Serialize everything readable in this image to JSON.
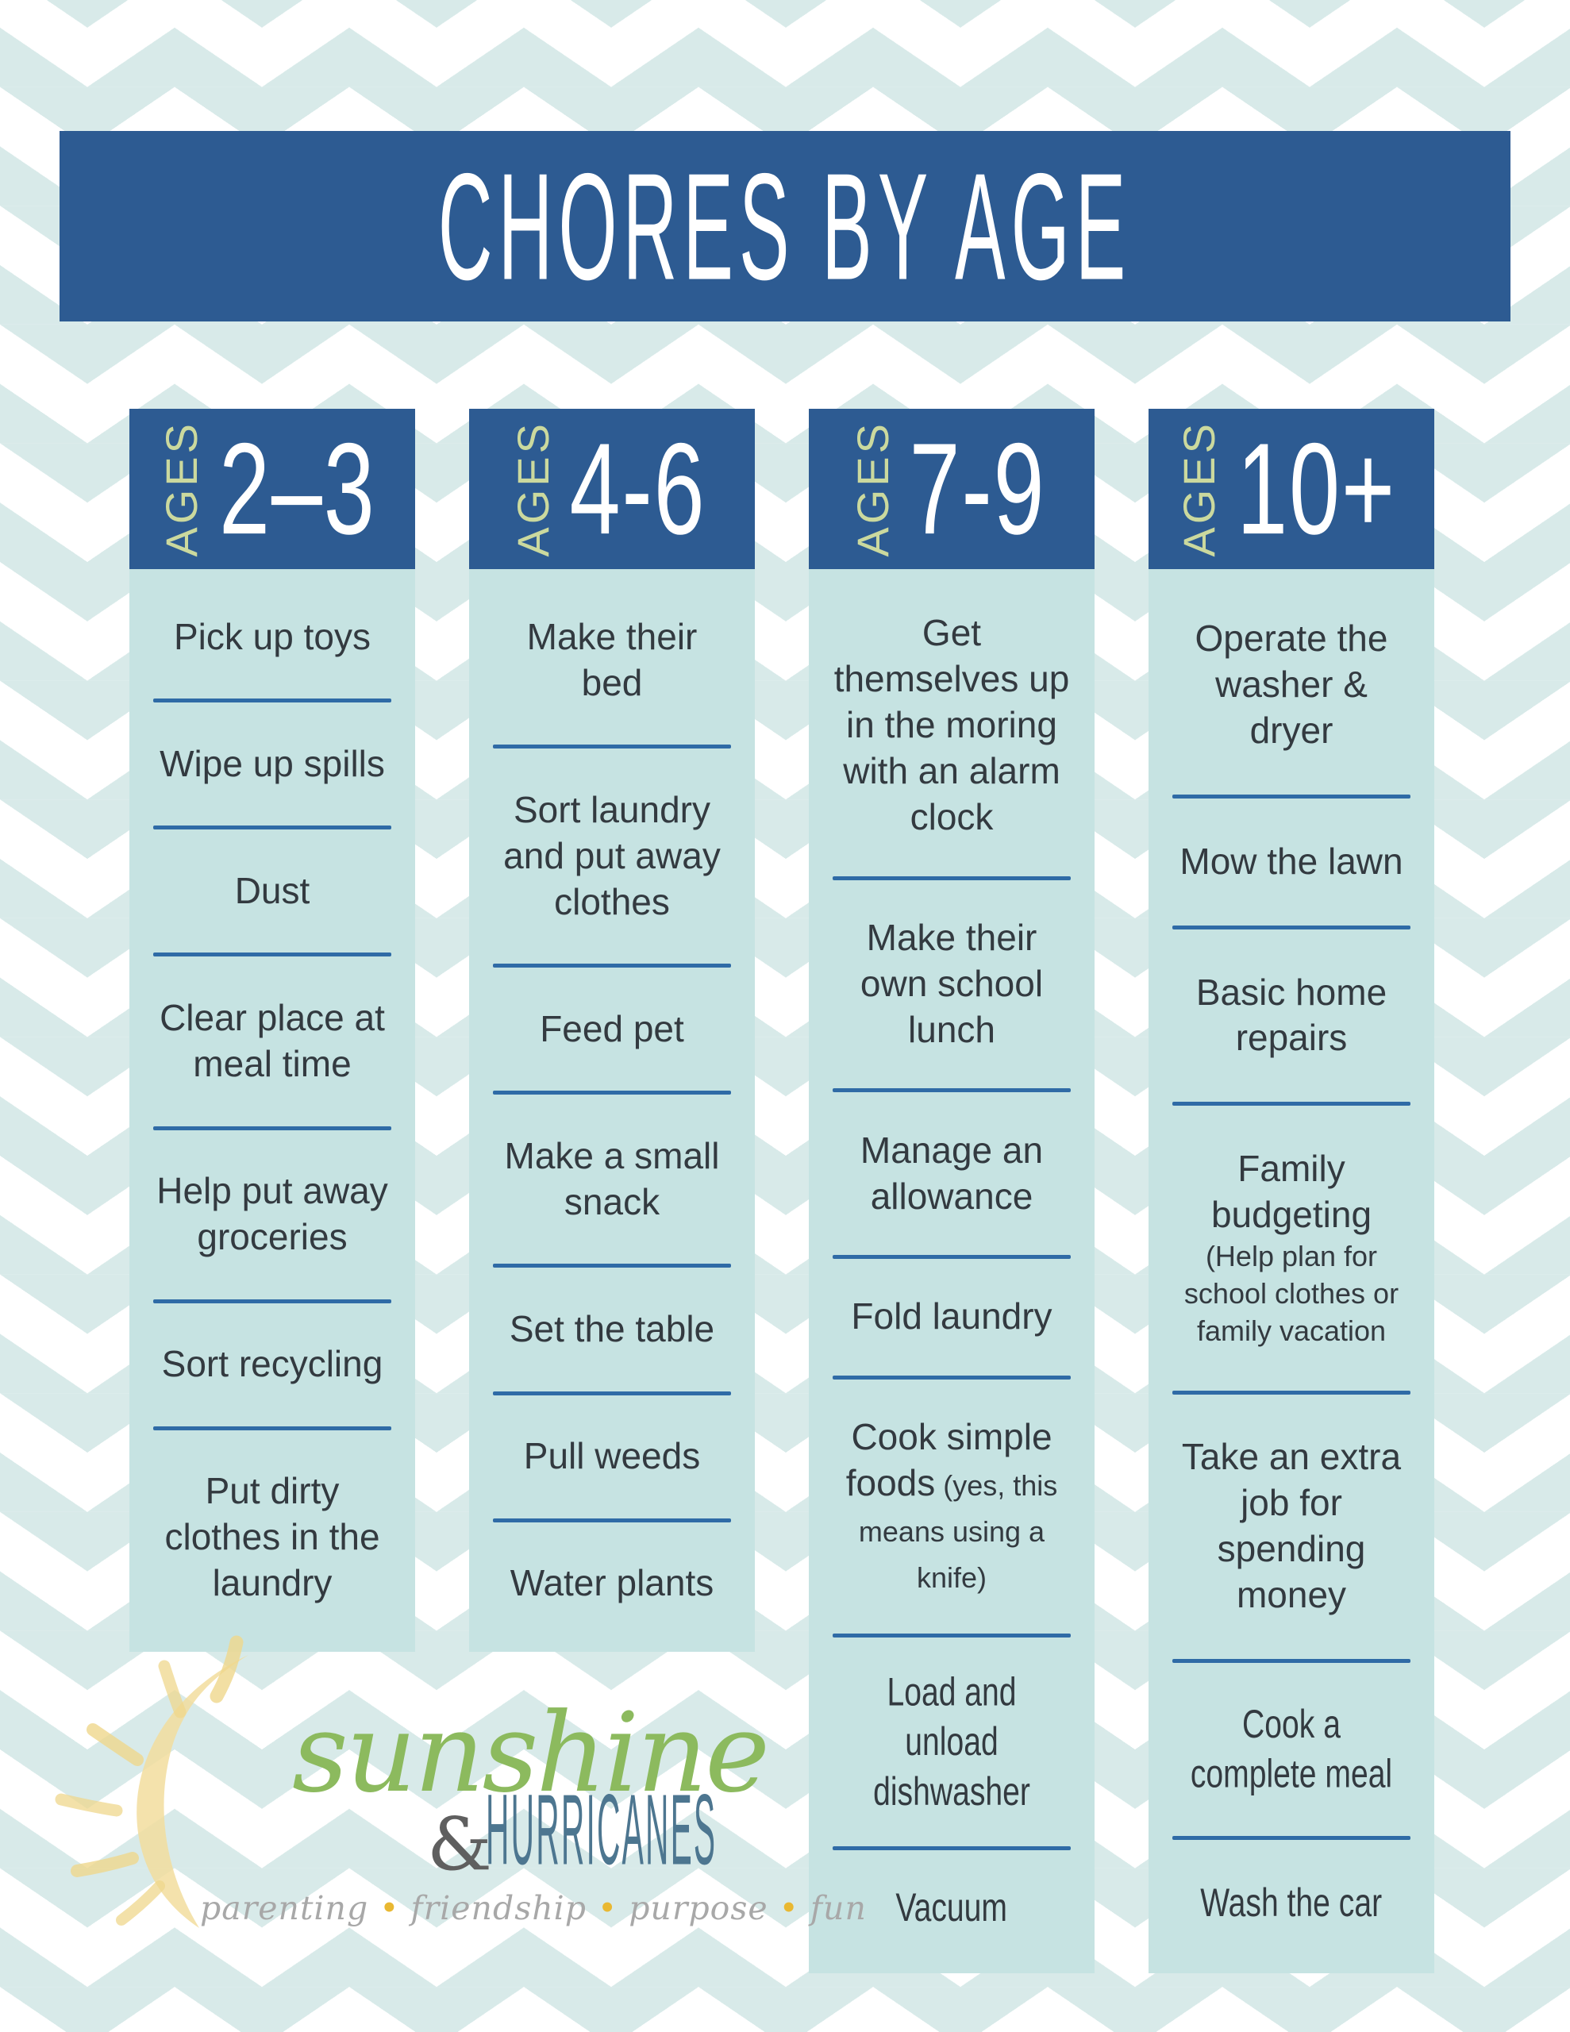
{
  "title": "CHORES BY AGE",
  "colors": {
    "banner_blue": "#2d5b92",
    "column_body_blue": "#c6e3e2",
    "divider_blue": "#2f6ba6",
    "ages_green": "#cbd99e",
    "text_dark": "#333a40",
    "chevron_teal": "#d8eae9",
    "logo_green": "#8cba5e",
    "logo_slate": "#4d7690",
    "tagline_gray": "#a8a8a8",
    "tagline_dot_gold": "#e9b832",
    "sun_yellow": "#f2dd9e"
  },
  "columns": [
    {
      "ages_label": "AGES",
      "age_range": "2–3",
      "items": [
        {
          "text": "Pick up toys"
        },
        {
          "text": "Wipe up spills"
        },
        {
          "text": "Dust"
        },
        {
          "text": "Clear place at meal time"
        },
        {
          "text": "Help put away groceries"
        },
        {
          "text": "Sort recycling"
        },
        {
          "text": "Put dirty clothes in the laundry"
        }
      ]
    },
    {
      "ages_label": "AGES",
      "age_range": "4-6",
      "items": [
        {
          "text": "Make their bed"
        },
        {
          "text": "Sort laundry and put away clothes"
        },
        {
          "text": "Feed pet"
        },
        {
          "text": "Make a small snack"
        },
        {
          "text": "Set the table"
        },
        {
          "text": "Pull weeds"
        },
        {
          "text": "Water plants"
        }
      ]
    },
    {
      "ages_label": "AGES",
      "age_range": "7-9",
      "items": [
        {
          "text": "Get themselves up in the moring with an alarm clock"
        },
        {
          "text": "Make their own school lunch"
        },
        {
          "text": "Manage an allowance"
        },
        {
          "text": "Fold laundry"
        },
        {
          "text": "Cook simple foods",
          "note": "(yes, this means using a knife)"
        },
        {
          "text": "Load and unload dishwasher",
          "condensed": true
        },
        {
          "text": "Vacuum",
          "condensed": true
        }
      ]
    },
    {
      "ages_label": "AGES",
      "age_range": "10+",
      "items": [
        {
          "text": "Operate the washer & dryer"
        },
        {
          "text": "Mow the lawn"
        },
        {
          "text": "Basic home repairs"
        },
        {
          "text": "Family budgeting",
          "note": "(Help plan for school clothes or family vacation",
          "note_block": true
        },
        {
          "text": "Take an extra job for spending money"
        },
        {
          "text": "Cook a complete meal",
          "condensed": true
        },
        {
          "text": "Wash the car",
          "condensed": true
        }
      ]
    }
  ],
  "logo": {
    "sunshine": "sunshine",
    "ampersand": "&",
    "hurricanes": "HURRICANES",
    "tagline_words": [
      "parenting",
      "friendship",
      "purpose",
      "fun"
    ],
    "tagline_separator": "•",
    "sun_icon": "sun-icon"
  }
}
